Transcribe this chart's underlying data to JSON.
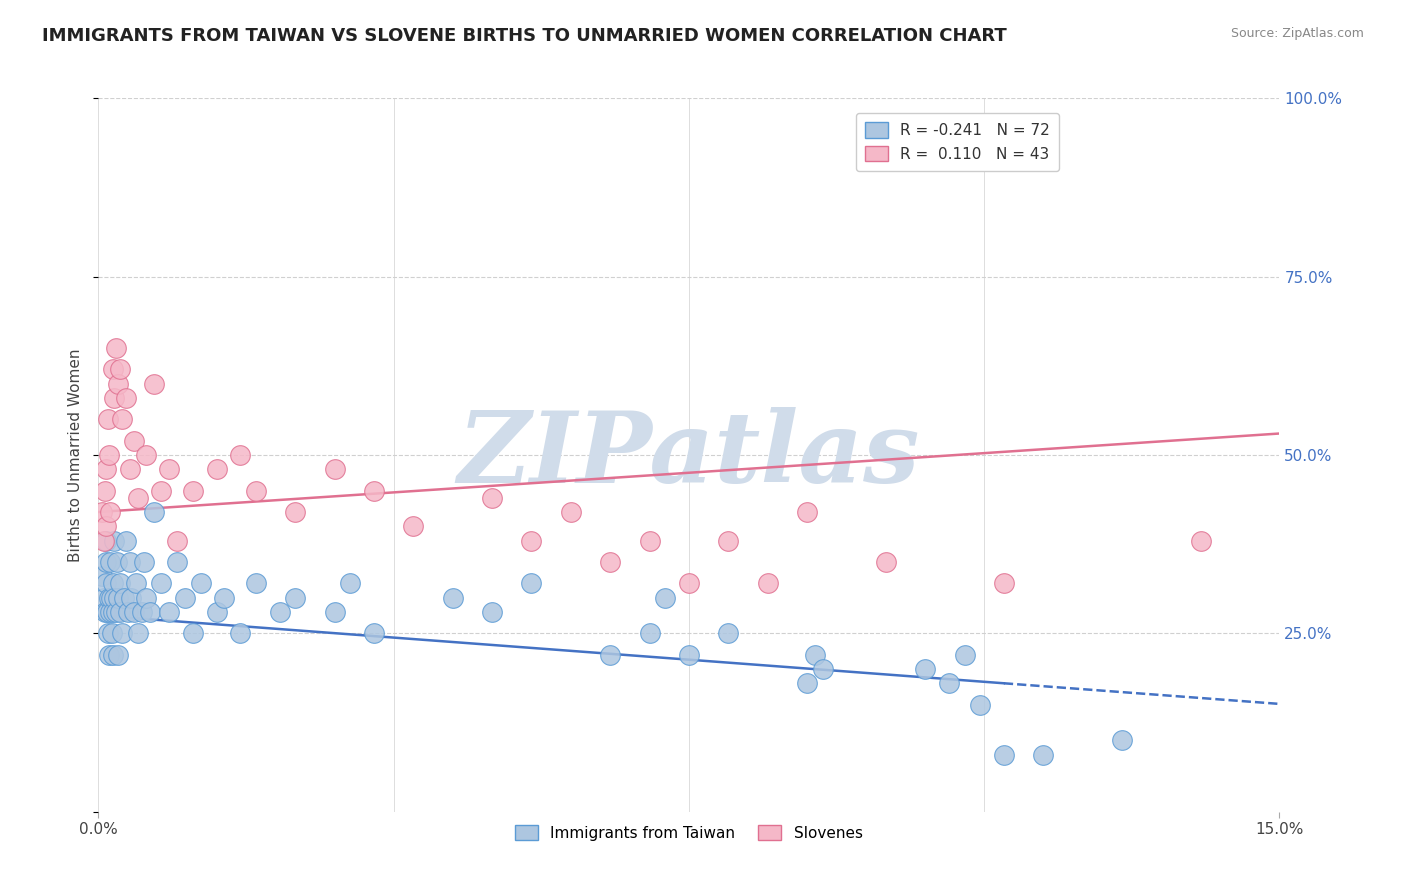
{
  "title": "IMMIGRANTS FROM TAIWAN VS SLOVENE BIRTHS TO UNMARRIED WOMEN CORRELATION CHART",
  "source": "Source: ZipAtlas.com",
  "ylabel": "Births to Unmarried Women",
  "xlim": [
    0.0,
    15.0
  ],
  "ylim": [
    0.0,
    100.0
  ],
  "blue_R": -0.241,
  "blue_N": 72,
  "pink_R": 0.11,
  "pink_N": 43,
  "blue_color": "#adc6e0",
  "pink_color": "#f5b8c8",
  "blue_edge": "#5b9bd5",
  "pink_edge": "#e07090",
  "trend_blue": "#4472c4",
  "trend_pink": "#e07090",
  "watermark": "ZIPatlas",
  "watermark_color": "#d0dcea",
  "background_color": "#ffffff",
  "grid_color": "#d0d0d0",
  "blue_scatter_x": [
    0.05,
    0.07,
    0.08,
    0.09,
    0.1,
    0.1,
    0.11,
    0.12,
    0.13,
    0.14,
    0.15,
    0.15,
    0.16,
    0.17,
    0.18,
    0.18,
    0.19,
    0.2,
    0.2,
    0.22,
    0.23,
    0.25,
    0.25,
    0.27,
    0.28,
    0.3,
    0.32,
    0.35,
    0.38,
    0.4,
    0.42,
    0.45,
    0.48,
    0.5,
    0.55,
    0.58,
    0.6,
    0.65,
    0.7,
    0.8,
    0.9,
    1.0,
    1.1,
    1.2,
    1.3,
    1.5,
    1.6,
    1.8,
    2.0,
    2.3,
    2.5,
    3.0,
    3.2,
    3.5,
    4.5,
    5.0,
    5.5,
    6.5,
    7.0,
    7.2,
    7.5,
    8.0,
    9.0,
    9.1,
    9.2,
    10.5,
    10.8,
    11.0,
    11.2,
    11.5,
    12.0,
    13.0
  ],
  "blue_scatter_y": [
    33.0,
    30.0,
    28.0,
    35.0,
    32.0,
    38.0,
    28.0,
    25.0,
    30.0,
    22.0,
    35.0,
    28.0,
    30.0,
    25.0,
    32.0,
    28.0,
    22.0,
    30.0,
    38.0,
    28.0,
    35.0,
    30.0,
    22.0,
    28.0,
    32.0,
    25.0,
    30.0,
    38.0,
    28.0,
    35.0,
    30.0,
    28.0,
    32.0,
    25.0,
    28.0,
    35.0,
    30.0,
    28.0,
    42.0,
    32.0,
    28.0,
    35.0,
    30.0,
    25.0,
    32.0,
    28.0,
    30.0,
    25.0,
    32.0,
    28.0,
    30.0,
    28.0,
    32.0,
    25.0,
    30.0,
    28.0,
    32.0,
    22.0,
    25.0,
    30.0,
    22.0,
    25.0,
    18.0,
    22.0,
    20.0,
    20.0,
    18.0,
    22.0,
    15.0,
    8.0,
    8.0,
    10.0
  ],
  "pink_scatter_x": [
    0.05,
    0.07,
    0.08,
    0.09,
    0.1,
    0.12,
    0.14,
    0.15,
    0.18,
    0.2,
    0.22,
    0.25,
    0.28,
    0.3,
    0.35,
    0.4,
    0.45,
    0.5,
    0.6,
    0.7,
    0.8,
    0.9,
    1.0,
    1.2,
    1.5,
    1.8,
    2.0,
    2.5,
    3.0,
    3.5,
    4.0,
    5.0,
    5.5,
    6.0,
    6.5,
    7.0,
    7.5,
    8.0,
    8.5,
    9.0,
    10.0,
    11.5,
    14.0
  ],
  "pink_scatter_y": [
    42.0,
    38.0,
    45.0,
    40.0,
    48.0,
    55.0,
    50.0,
    42.0,
    62.0,
    58.0,
    65.0,
    60.0,
    62.0,
    55.0,
    58.0,
    48.0,
    52.0,
    44.0,
    50.0,
    60.0,
    45.0,
    48.0,
    38.0,
    45.0,
    48.0,
    50.0,
    45.0,
    42.0,
    48.0,
    45.0,
    40.0,
    44.0,
    38.0,
    42.0,
    35.0,
    38.0,
    32.0,
    38.0,
    32.0,
    42.0,
    35.0,
    32.0,
    38.0
  ],
  "blue_trend_x0": 0.0,
  "blue_trend_y0": 27.5,
  "blue_trend_x1": 11.5,
  "blue_trend_y1": 18.0,
  "blue_dash_x0": 11.5,
  "blue_dash_x1": 15.0,
  "pink_trend_x0": 0.0,
  "pink_trend_y0": 42.0,
  "pink_trend_x1": 15.0,
  "pink_trend_y1": 53.0,
  "title_fontsize": 13,
  "legend_fontsize": 11,
  "axis_label_fontsize": 11,
  "tick_fontsize": 11,
  "right_tick_color": "#4472c4"
}
